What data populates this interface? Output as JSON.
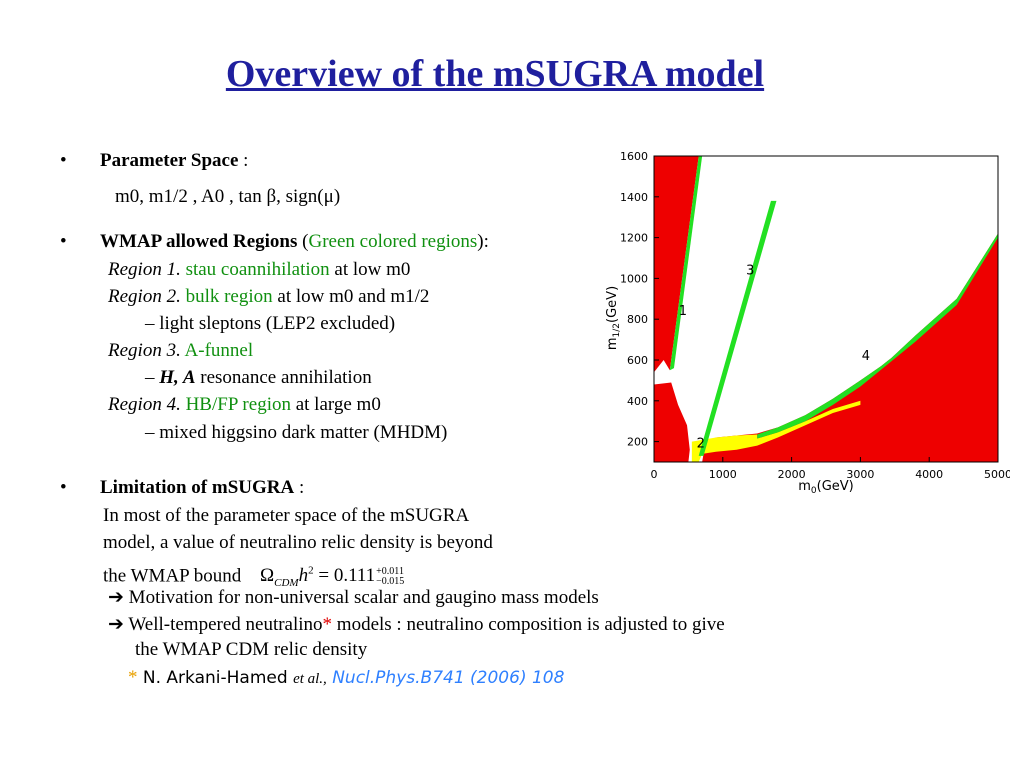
{
  "slide": {
    "title": "Overview of the mSUGRA model",
    "bullets": {
      "param_space": {
        "label": "Parameter Space",
        "suffix": " :",
        "formula": "m0, m1/2 , A0 , tan β, sign(μ)"
      },
      "wmap": {
        "label": "WMAP allowed Regions",
        "paren_open": " (",
        "paren_text": "Green colored regions",
        "paren_close": "):"
      },
      "regions": [
        {
          "name": "Region 1.",
          "term": "stau coannihilation",
          "rest": "  at low m0"
        },
        {
          "name": "Region 2.",
          "term": "bulk region",
          "rest": " at low m0 and m1/2"
        },
        {
          "sub": "–  light sleptons (LEP2 excluded)"
        },
        {
          "name": "Region 3.",
          "term": "A-funnel",
          "rest": ""
        },
        {
          "sub_prefix": "– ",
          "sub_bold": "H, A",
          "sub_rest": " resonance annihilation"
        },
        {
          "name": "Region 4.",
          "term": "HB/FP region",
          "rest": " at large m0"
        },
        {
          "sub": "– mixed higgsino dark matter (MHDM)"
        }
      ],
      "limitation": {
        "label": "Limitation of mSUGRA",
        "suffix": " :",
        "lines": [
          "In most of the parameter space of the mSUGRA",
          "model, a value of neutralino relic density is beyond",
          "the WMAP bound"
        ],
        "formula": {
          "lhs": "Ω",
          "sub": "CDM",
          "h": "h",
          "sq": "2",
          "eq": " = 0.111",
          "up": "+0.011",
          "down": "−0.015"
        },
        "arrows": [
          "Motivation for non-universal scalar and gaugino mass models",
          "Well-tempered neutralino"
        ],
        "arrow2_star": "*",
        "arrow2_rest": " models  :  neutralino composition is adjusted to give",
        "arrow2_cont": "the WMAP CDM  relic density",
        "cite_star": "*",
        "cite_author": " N. Arkani-Hamed ",
        "cite_etal": "et al.,",
        "cite_journal": " Nucl.Phys.B741 (2006) 108"
      }
    },
    "arrow_glyph": "➔",
    "bullet_glyph": "•"
  },
  "chart_data": {
    "type": "area",
    "xlabel": "m0(GeV)",
    "ylabel": "m1/2(GeV)",
    "xlim": [
      0,
      5000
    ],
    "ylim": [
      100,
      1600
    ],
    "xticks": [
      0,
      1000,
      2000,
      3000,
      4000,
      5000
    ],
    "yticks": [
      200,
      400,
      600,
      800,
      1000,
      1200,
      1400,
      1600
    ],
    "region_labels": [
      "1",
      "2",
      "3",
      "4"
    ],
    "colors": {
      "excluded": "#ee0000",
      "wmap": "#22e022",
      "lep": "#ffff00"
    },
    "regions": {
      "red_left": [
        [
          0,
          100
        ],
        [
          0,
          1600
        ],
        [
          650,
          1600
        ],
        [
          230,
          550
        ],
        [
          140,
          600
        ],
        [
          0,
          540
        ]
      ],
      "red_left_low": [
        [
          0,
          100
        ],
        [
          0,
          480
        ],
        [
          250,
          490
        ],
        [
          350,
          380
        ],
        [
          480,
          280
        ],
        [
          520,
          160
        ],
        [
          500,
          100
        ]
      ],
      "red_right": [
        [
          5000,
          100
        ],
        [
          5000,
          1220
        ],
        [
          4400,
          900
        ],
        [
          3800,
          720
        ],
        [
          3450,
          610
        ],
        [
          3300,
          570
        ],
        [
          3000,
          500
        ],
        [
          2600,
          410
        ],
        [
          2200,
          330
        ],
        [
          1800,
          270
        ],
        [
          1500,
          240
        ],
        [
          1200,
          230
        ],
        [
          900,
          220
        ],
        [
          750,
          200
        ],
        [
          700,
          100
        ]
      ],
      "green_1": [
        [
          230,
          550
        ],
        [
          650,
          1600
        ],
        [
          700,
          1600
        ],
        [
          290,
          560
        ]
      ],
      "green_3": [
        [
          650,
          130
        ],
        [
          1700,
          1380
        ],
        [
          1780,
          1380
        ],
        [
          720,
          130
        ]
      ],
      "green_4": [
        [
          1500,
          235
        ],
        [
          1800,
          270
        ],
        [
          2200,
          330
        ],
        [
          2600,
          410
        ],
        [
          3000,
          500
        ],
        [
          3300,
          570
        ],
        [
          3450,
          610
        ],
        [
          3800,
          720
        ],
        [
          4400,
          900
        ],
        [
          5000,
          1220
        ],
        [
          5000,
          1200
        ],
        [
          4400,
          870
        ],
        [
          3800,
          690
        ],
        [
          3400,
          580
        ],
        [
          3000,
          470
        ],
        [
          2600,
          380
        ],
        [
          2200,
          300
        ],
        [
          1800,
          245
        ],
        [
          1500,
          215
        ]
      ],
      "yellow": [
        [
          550,
          100
        ],
        [
          550,
          200
        ],
        [
          900,
          220
        ],
        [
          1200,
          230
        ],
        [
          1500,
          235
        ],
        [
          1500,
          215
        ],
        [
          1800,
          245
        ],
        [
          2200,
          300
        ],
        [
          2600,
          360
        ],
        [
          3000,
          400
        ],
        [
          3000,
          380
        ],
        [
          2600,
          340
        ],
        [
          2200,
          280
        ],
        [
          1800,
          220
        ],
        [
          1500,
          180
        ],
        [
          1200,
          160
        ],
        [
          900,
          150
        ],
        [
          700,
          140
        ],
        [
          650,
          100
        ]
      ]
    },
    "label_positions": {
      "1": [
        420,
        820
      ],
      "2": [
        680,
        170
      ],
      "3": [
        1400,
        1020
      ],
      "4": [
        3080,
        600
      ]
    }
  }
}
